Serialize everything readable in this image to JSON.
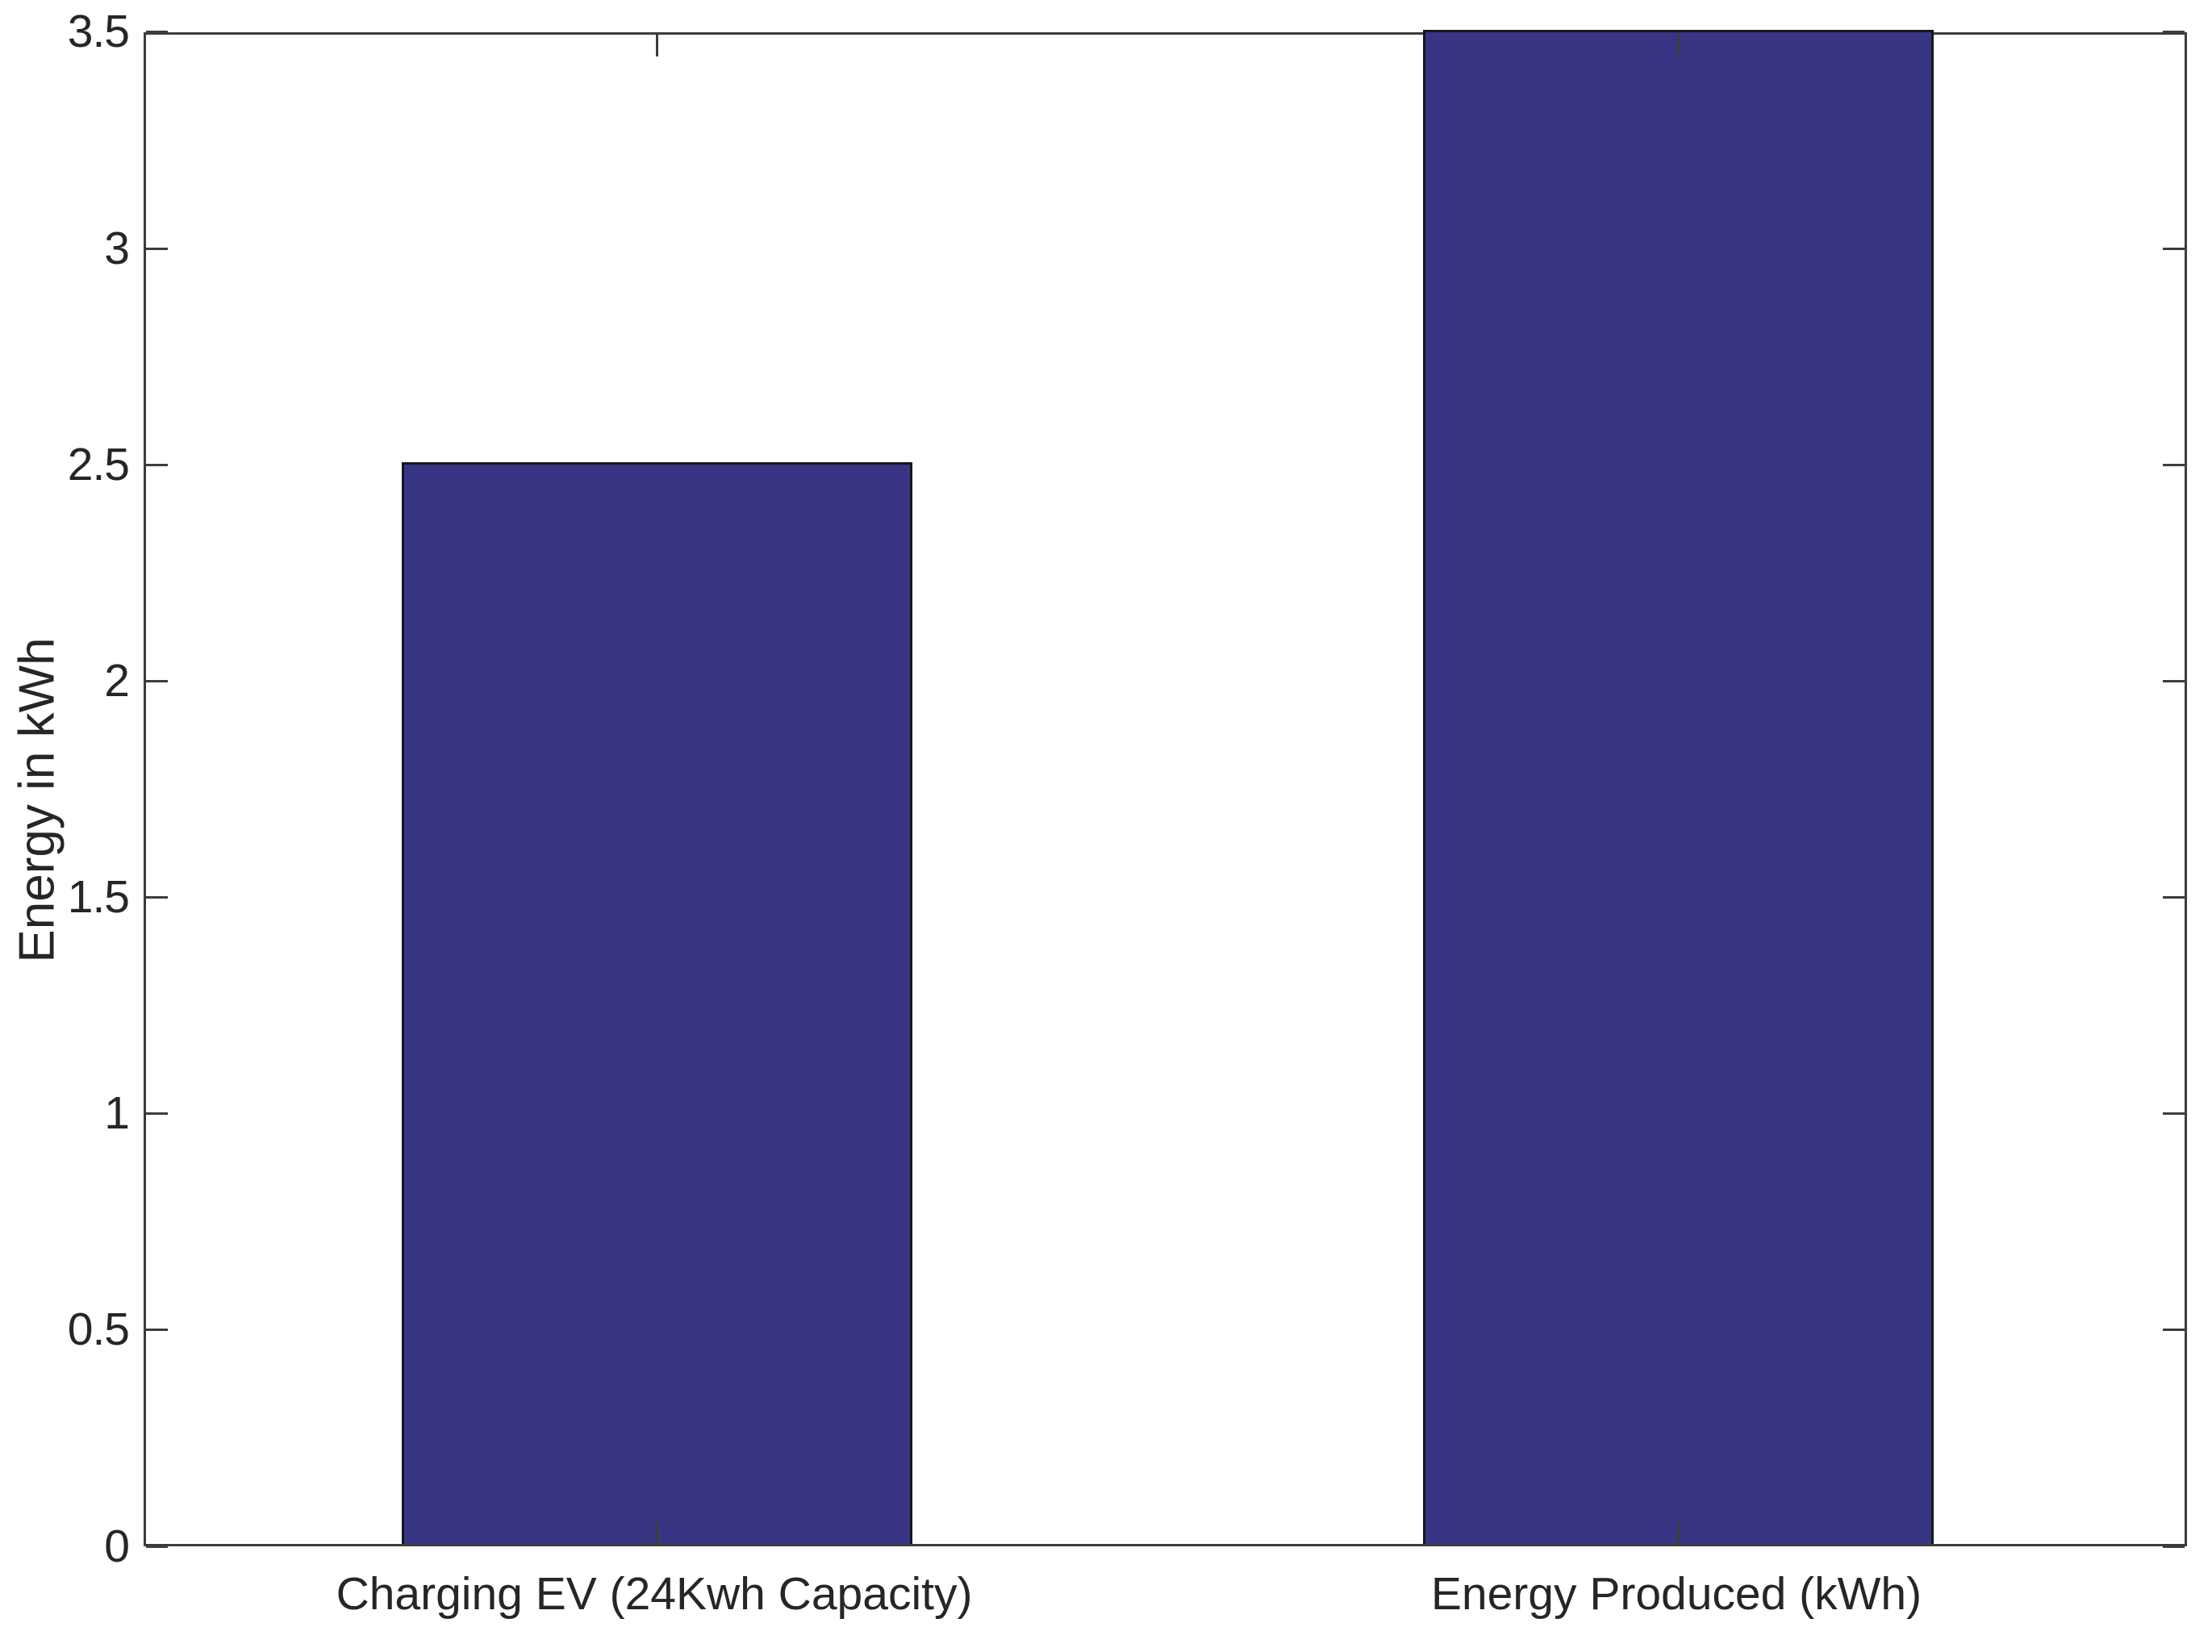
{
  "chart_data": {
    "type": "bar",
    "title": "",
    "xlabel": "",
    "ylabel": "Energy in kWh",
    "categories": [
      "Charging EV (24Kwh Capacity)",
      "Energy Produced (kWh)"
    ],
    "values": [
      2.5,
      3.5
    ],
    "ylim": [
      0,
      3.5
    ],
    "ytick_step": 0.5,
    "ytick_labels": [
      "0",
      "0.5",
      "1",
      "1.5",
      "2",
      "2.5",
      "3",
      "3.5"
    ],
    "grid": false,
    "legend": null,
    "bar_width_fraction": 0.5,
    "ticks_inward_all_sides": true,
    "colors": {
      "bar_fill": "#373583",
      "bar_edge": "#16161d",
      "axis": "#3c3c3c",
      "text": "#262626",
      "background": "#ffffff"
    }
  }
}
